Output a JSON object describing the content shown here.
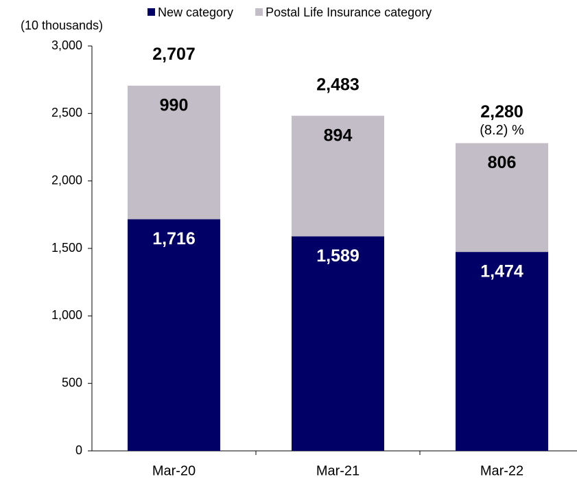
{
  "chart_data": {
    "type": "stacked_bar",
    "y_axis_label": "(10 thousands)",
    "categories": [
      "Mar-20",
      "Mar-21",
      "Mar-22"
    ],
    "series": [
      {
        "name": "New category",
        "color": "#000066",
        "values": [
          1716,
          1589,
          1474
        ],
        "value_labels": [
          "1,716",
          "1,589",
          "1,474"
        ]
      },
      {
        "name": "Postal Life Insurance category",
        "color": "#c3bdc7",
        "values": [
          990,
          894,
          806
        ]
      }
    ],
    "totals": [
      2707,
      2483,
      2280
    ],
    "total_labels": [
      "2,707",
      "2,483",
      "2,280"
    ],
    "annotations": [
      null,
      null,
      "(8.2) %"
    ],
    "ylim": [
      0,
      3000
    ],
    "yticks": [
      0,
      500,
      {
        "value": 1000,
        "label": "1,000"
      },
      {
        "value": 1500,
        "label": "1,500"
      },
      {
        "value": 2000,
        "label": "2,000"
      },
      {
        "value": 2500,
        "label": "2,500"
      },
      {
        "value": 3000,
        "label": "3,000"
      }
    ],
    "grid": false
  }
}
